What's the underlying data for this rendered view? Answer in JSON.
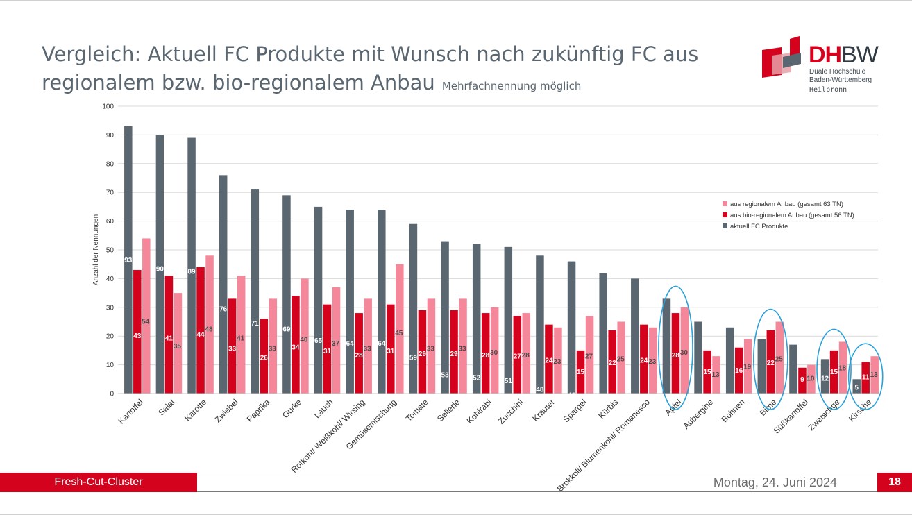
{
  "slide": {
    "title": "Vergleich: Aktuell FC Produkte mit Wunsch nach zukünftig FC aus regionalem bzw. bio-regionalem Anbau",
    "subtitle": "Mehrfachnennung möglich",
    "logo_dh": "DH",
    "logo_bw": "BW",
    "logo_line1": "Duale Hochschule",
    "logo_line2": "Baden-Württemberg",
    "logo_city": "Heilbronn",
    "footer_label": "Fresh-Cut-Cluster",
    "footer_date": "Montag, 24. Juni 2024",
    "page_number": "18"
  },
  "colors": {
    "aktuell": "#5b6770",
    "bio": "#d4021d",
    "regional": "#f4889a",
    "highlight": "#2a9fd8",
    "accent": "#d4021d"
  },
  "chart_data": {
    "type": "bar",
    "ylabel": "Anzahl der Nennungen",
    "ylim": [
      0,
      100
    ],
    "yticks": [
      0,
      10,
      20,
      30,
      40,
      50,
      60,
      70,
      80,
      90,
      100
    ],
    "grid": true,
    "legend_position": "right",
    "categories": [
      "Kartoffel",
      "Salat",
      "Karotte",
      "Zwiebel",
      "Paprika",
      "Gurke",
      "Lauch",
      "Rotkohl/ Weißkohl/ Wirsing",
      "Gemüsemischung",
      "Tomate",
      "Sellerie",
      "Kohlrabi",
      "Zucchini",
      "Kräuter",
      "Spargel",
      "Kürbis",
      "Brokkoli/ Blumenkohl/ Romanesco",
      "Apfel",
      "Aubergine",
      "Bohnen",
      "Birne",
      "Süßkartoffel",
      "Zwetschge",
      "Kirsche"
    ],
    "series": [
      {
        "name": "aktuell FC Produkte",
        "values": [
          93,
          90,
          89,
          76,
          71,
          69,
          65,
          64,
          64,
          59,
          53,
          52,
          51,
          48,
          46,
          42,
          40,
          33,
          25,
          23,
          19,
          17,
          12,
          5
        ]
      },
      {
        "name": "aus bio-regionalem Anbau (gesamt 56 TN)",
        "values": [
          43,
          41,
          44,
          33,
          26,
          34,
          31,
          28,
          31,
          29,
          29,
          28,
          27,
          24,
          15,
          22,
          24,
          28,
          15,
          16,
          22,
          9,
          15,
          11
        ]
      },
      {
        "name": "aus regionalem Anbau (gesamt 63 TN)",
        "values": [
          54,
          35,
          48,
          41,
          33,
          40,
          37,
          33,
          45,
          33,
          33,
          30,
          28,
          23,
          27,
          25,
          23,
          30,
          13,
          19,
          25,
          10,
          18,
          13
        ]
      }
    ],
    "legend_order": [
      "aus regionalem Anbau (gesamt 63 TN)",
      "aus bio-regionalem Anbau (gesamt 56 TN)",
      "aktuell FC Produkte"
    ],
    "highlighted_categories": [
      "Apfel",
      "Birne",
      "Zwetschge",
      "Kirsche"
    ]
  }
}
